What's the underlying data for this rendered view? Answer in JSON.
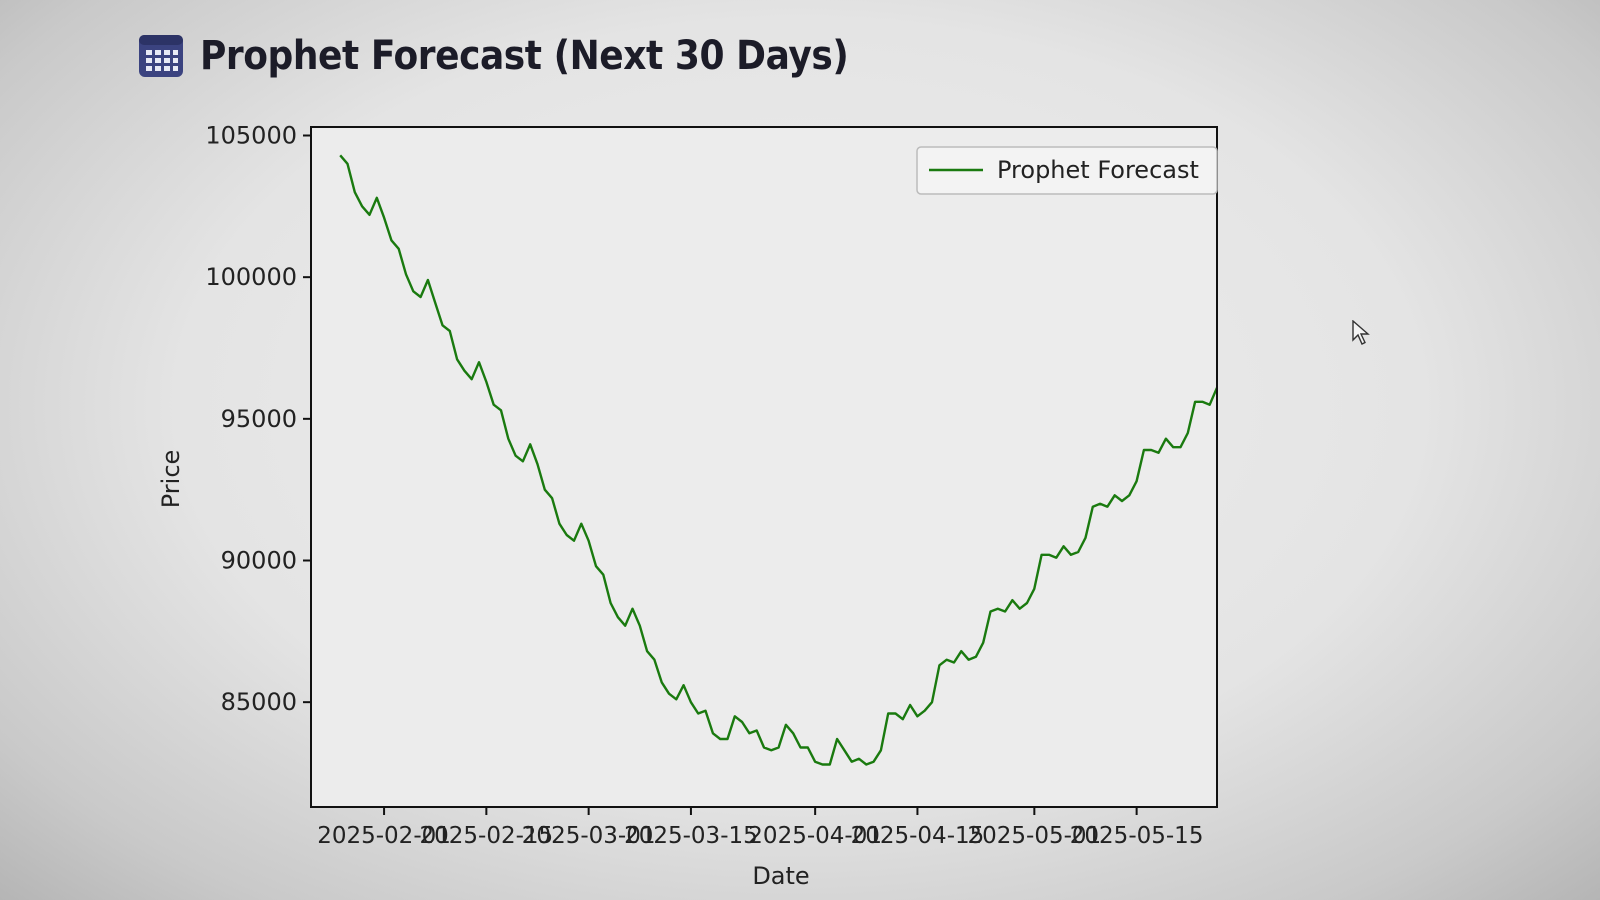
{
  "page": {
    "title": "Prophet Forecast (Next 30 Days)",
    "title_icon": "calendar-icon"
  },
  "colors": {
    "line": "#1a7a0f",
    "icon": "#3b4380",
    "title_text": "#1c1c28"
  },
  "chart_data": {
    "type": "line",
    "title": "",
    "xlabel": "Date",
    "ylabel": "Price",
    "ylim": [
      81300,
      105300
    ],
    "yticks": [
      85000,
      90000,
      95000,
      100000,
      105000
    ],
    "xlim_days": [
      -10,
      114
    ],
    "xticks": [
      {
        "day": 0,
        "label": "2025-02-01"
      },
      {
        "day": 14,
        "label": "2025-02-15"
      },
      {
        "day": 28,
        "label": "2025-03-01"
      },
      {
        "day": 42,
        "label": "2025-03-15"
      },
      {
        "day": 59,
        "label": "2025-04-01"
      },
      {
        "day": 73,
        "label": "2025-04-15"
      },
      {
        "day": 89,
        "label": "2025-05-01"
      },
      {
        "day": 103,
        "label": "2025-05-15"
      }
    ],
    "legend": {
      "label": "Prophet Forecast",
      "position": "top-right"
    },
    "series": [
      {
        "name": "Prophet Forecast",
        "start_date": "2025-01-26",
        "start_day": -6,
        "values": [
          104300,
          104000,
          103000,
          102500,
          102200,
          102800,
          102100,
          101300,
          101000,
          100100,
          99500,
          99300,
          99900,
          99100,
          98300,
          98100,
          97100,
          96700,
          96400,
          97000,
          96300,
          95500,
          95300,
          94300,
          93700,
          93500,
          94100,
          93400,
          92500,
          92200,
          91300,
          90900,
          90700,
          91300,
          90700,
          89800,
          89500,
          88500,
          88000,
          87700,
          88300,
          87700,
          86800,
          86500,
          85700,
          85300,
          85100,
          85600,
          85000,
          84600,
          84700,
          83900,
          83700,
          83700,
          84500,
          84300,
          83900,
          84000,
          83400,
          83300,
          83400,
          84200,
          83900,
          83400,
          83400,
          82900,
          82800,
          82800,
          83700,
          83300,
          82900,
          83000,
          82800,
          82900,
          83300,
          84600,
          84600,
          84400,
          84900,
          84500,
          84700,
          85000,
          86300,
          86500,
          86400,
          86800,
          86500,
          86600,
          87100,
          88200,
          88300,
          88200,
          88600,
          88300,
          88500,
          89000,
          90200,
          90200,
          90100,
          90500,
          90200,
          90300,
          90800,
          91900,
          92000,
          91900,
          92300,
          92100,
          92300,
          92800,
          93900,
          93900,
          93800,
          94300,
          94000,
          94000,
          94500,
          95600,
          95600,
          95500,
          96100
        ]
      }
    ]
  }
}
